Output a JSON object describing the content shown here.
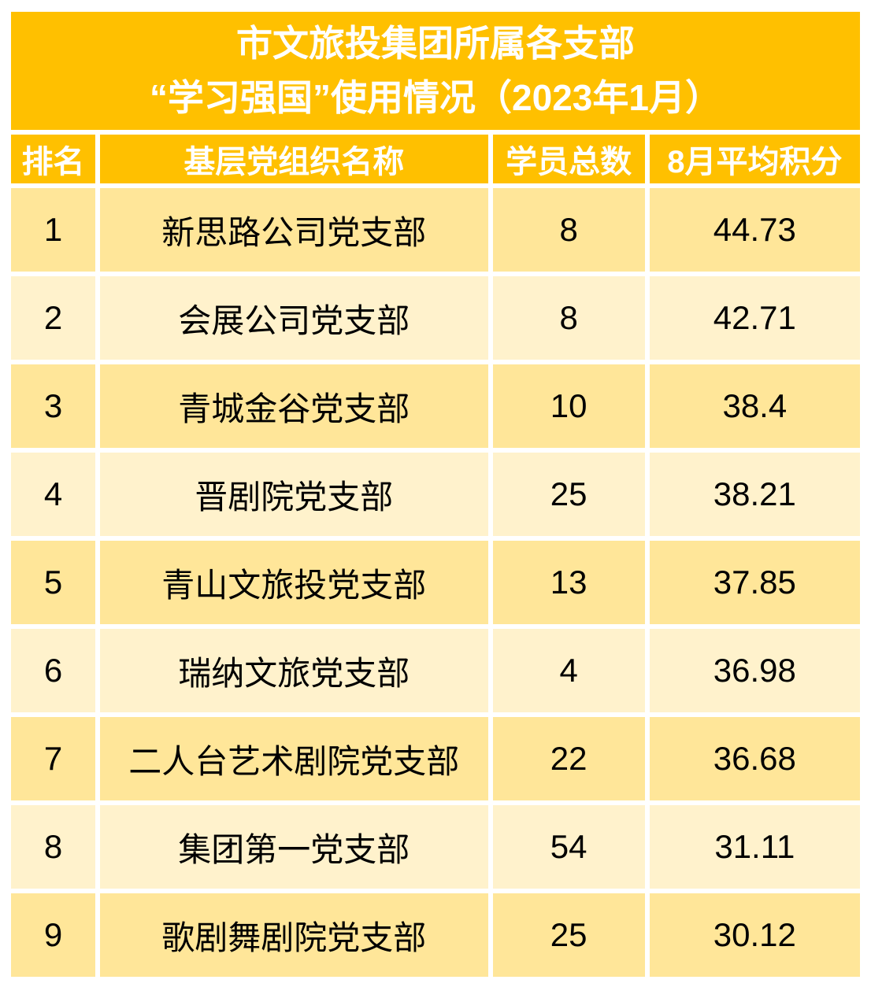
{
  "title": {
    "line1": "市文旅投集团所属各支部",
    "line2": "“学习强国”使用情况（2023年1月）"
  },
  "table": {
    "headers": {
      "rank": "排名",
      "org": "基层党组织名称",
      "members": "学员总数",
      "score": "8月平均积分"
    },
    "rows": [
      {
        "rank": "1",
        "org": "新思路公司党支部",
        "members": "8",
        "score": "44.73"
      },
      {
        "rank": "2",
        "org": "会展公司党支部",
        "members": "8",
        "score": "42.71"
      },
      {
        "rank": "3",
        "org": "青城金谷党支部",
        "members": "10",
        "score": "38.4"
      },
      {
        "rank": "4",
        "org": "晋剧院党支部",
        "members": "25",
        "score": "38.21"
      },
      {
        "rank": "5",
        "org": "青山文旅投党支部",
        "members": "13",
        "score": "37.85"
      },
      {
        "rank": "6",
        "org": "瑞纳文旅党支部",
        "members": "4",
        "score": "36.98"
      },
      {
        "rank": "7",
        "org": "二人台艺术剧院党支部",
        "members": "22",
        "score": "36.68"
      },
      {
        "rank": "8",
        "org": "集团第一党支部",
        "members": "54",
        "score": "31.11"
      },
      {
        "rank": "9",
        "org": "歌剧舞剧院党支部",
        "members": "25",
        "score": "30.12"
      }
    ]
  },
  "colors": {
    "accent_gold": "#FFC000",
    "row_band_dark": "#FFE699",
    "row_band_light": "#FFF2CC",
    "grid_gap": "#FFFFFF",
    "title_text": "#FFFFFF",
    "data_text": "#000000"
  },
  "chart_data": {
    "type": "table",
    "title": "市文旅投集团所属各支部“学习强国”使用情况（2023年1月）",
    "columns": [
      "排名",
      "基层党组织名称",
      "学员总数",
      "8月平均积分"
    ],
    "rows": [
      [
        1,
        "新思路公司党支部",
        8,
        44.73
      ],
      [
        2,
        "会展公司党支部",
        8,
        42.71
      ],
      [
        3,
        "青城金谷党支部",
        10,
        38.4
      ],
      [
        4,
        "晋剧院党支部",
        25,
        38.21
      ],
      [
        5,
        "青山文旅投党支部",
        13,
        37.85
      ],
      [
        6,
        "瑞纳文旅党支部",
        4,
        36.98
      ],
      [
        7,
        "二人台艺术剧院党支部",
        22,
        36.68
      ],
      [
        8,
        "集团第一党支部",
        54,
        31.11
      ],
      [
        9,
        "歌剧舞剧院党支部",
        25,
        30.12
      ]
    ]
  }
}
